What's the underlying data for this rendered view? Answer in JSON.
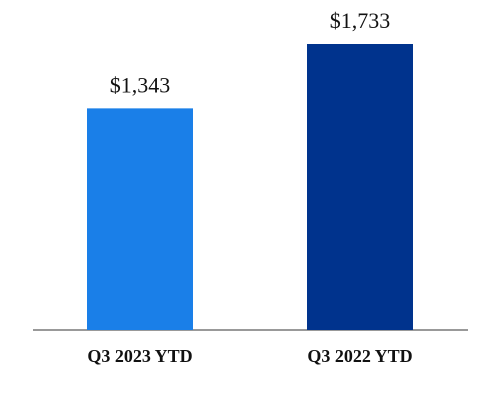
{
  "chart_data": {
    "type": "bar",
    "title": "",
    "xlabel": "",
    "ylabel": "",
    "categories": [
      "Q3 2023 YTD",
      "Q3 2022 YTD"
    ],
    "values": [
      1343,
      1733
    ],
    "value_labels": [
      "$1,343",
      "$1,733"
    ],
    "bar_colors": [
      "#1a7fe8",
      "#00338d"
    ],
    "axis_color": "#999999",
    "ylim": [
      0,
      1733
    ],
    "grid": false,
    "legend": "none"
  }
}
